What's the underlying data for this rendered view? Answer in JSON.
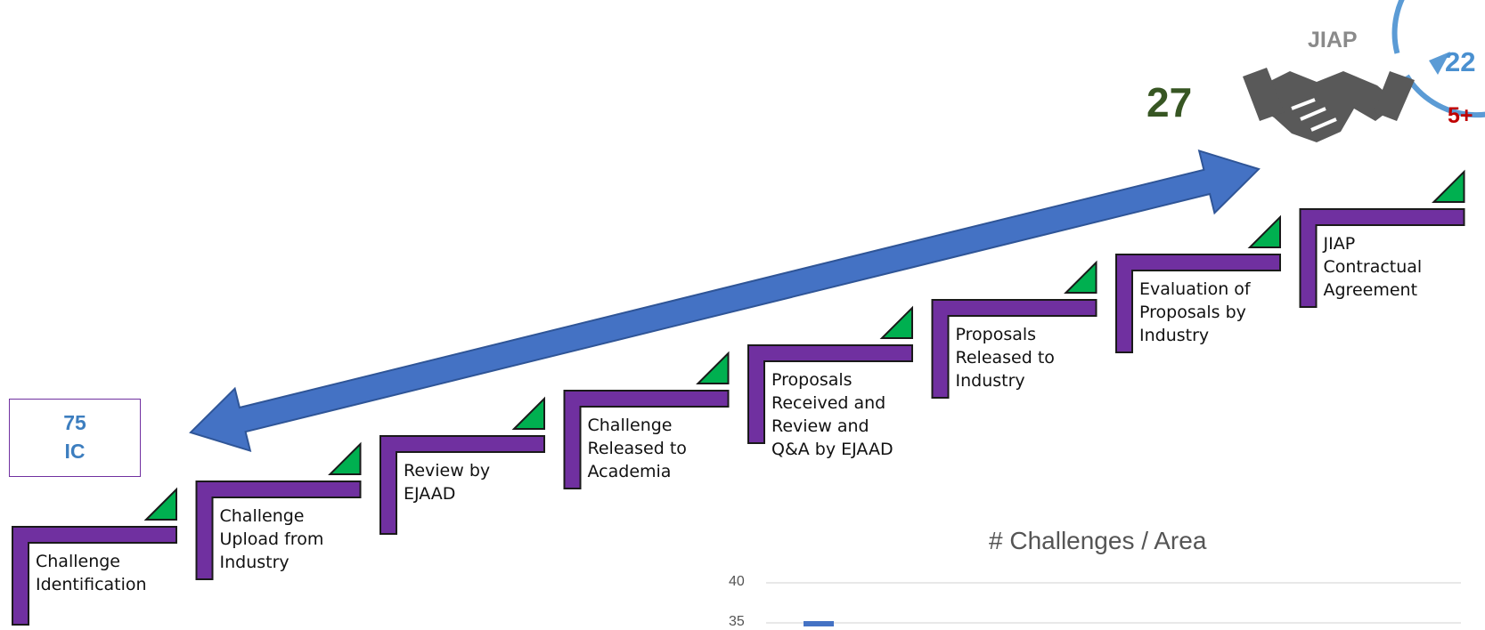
{
  "steps": [
    {
      "lines": [
        "Challenge",
        "Identification"
      ]
    },
    {
      "lines": [
        "Challenge",
        "Upload from",
        "Industry"
      ]
    },
    {
      "lines": [
        "Review by",
        "EJAAD"
      ]
    },
    {
      "lines": [
        "Challenge",
        "Released to",
        "Academia"
      ]
    },
    {
      "lines": [
        "Proposals",
        "Received and",
        "Review and",
        "Q&A by EJAAD"
      ]
    },
    {
      "lines": [
        "Proposals",
        "Released to",
        "Industry"
      ]
    },
    {
      "lines": [
        "Evaluation of",
        "Proposals by",
        "Industry"
      ]
    },
    {
      "lines": [
        "JIAP",
        "Contractual",
        "Agreement"
      ]
    }
  ],
  "ic_box": {
    "line1": "75",
    "line2": "IC"
  },
  "total_count": "27",
  "jiap": {
    "title": "JIAP",
    "count_blue": "22",
    "count_red": "5+"
  },
  "colors": {
    "step_bracket": "#7030a0",
    "step_triangle": "#00b050",
    "arrow": "#4472c4",
    "jiap_ring": "#5b9bd5",
    "handshake": "#595959"
  },
  "icons": {
    "jiap_logo": "handshake-icon"
  },
  "chart_data": {
    "type": "bar",
    "title": "# Challenges / Area",
    "xlabel": "",
    "ylabel": "",
    "ylim": [
      0,
      40
    ],
    "yticks": [
      "40",
      "35"
    ],
    "grid": true,
    "categories": [
      ""
    ],
    "values": [
      35
    ]
  }
}
